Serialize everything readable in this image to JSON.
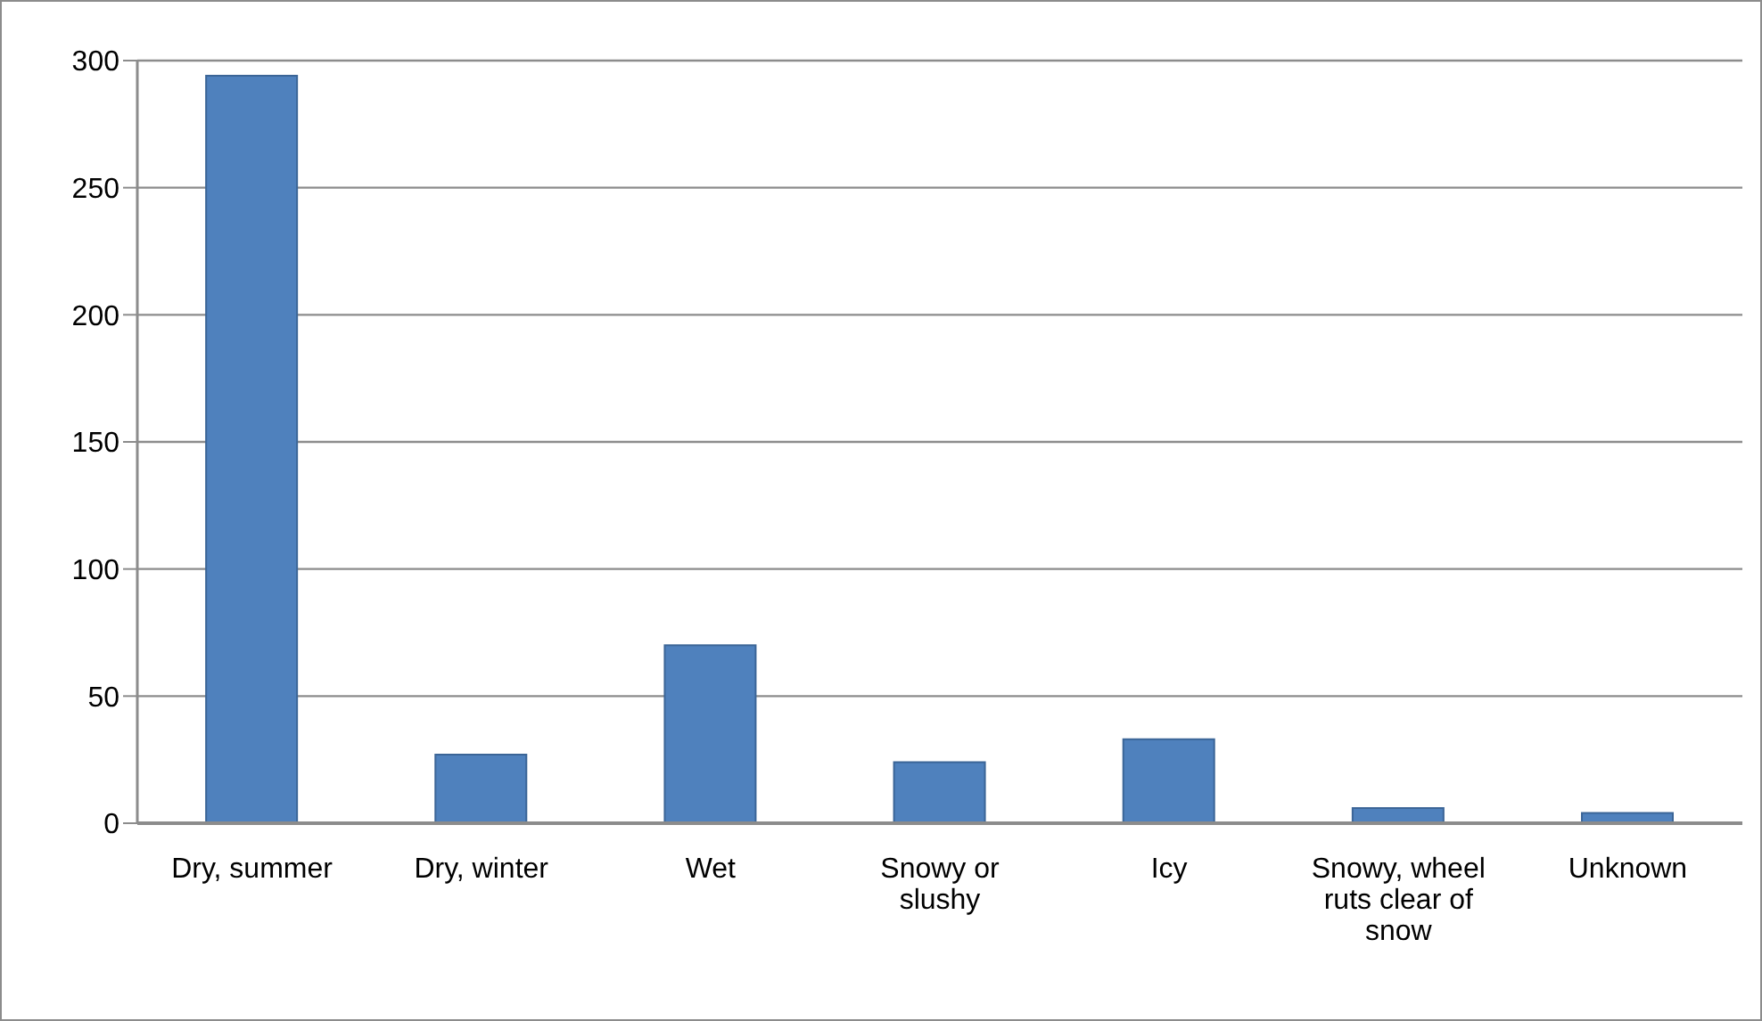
{
  "chart_data": {
    "type": "bar",
    "categories": [
      "Dry, summer",
      "Dry, winter",
      "Wet",
      "Snowy or slushy",
      "Icy",
      "Snowy, wheel ruts clear of snow",
      "Unknown"
    ],
    "values": [
      294,
      27,
      70,
      24,
      33,
      6,
      4
    ],
    "color": "#4f81bd",
    "ylim": [
      0,
      300
    ],
    "yticks": [
      0,
      50,
      100,
      150,
      200,
      250,
      300
    ],
    "grid": "y"
  }
}
